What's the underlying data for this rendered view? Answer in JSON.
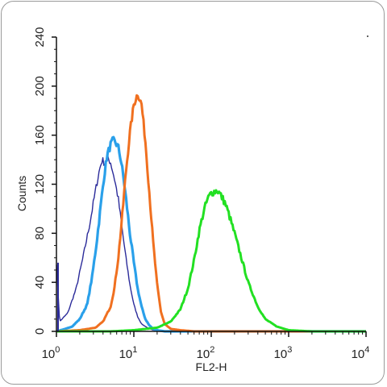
{
  "chart_data": {
    "type": "line",
    "xlabel": "FL2-H",
    "ylabel": "Counts",
    "x_scale": "log",
    "xlim": [
      1,
      10000
    ],
    "ylim": [
      0,
      240
    ],
    "grid": false,
    "x_ticks": [
      {
        "base": "10",
        "exp": "0",
        "value": 1
      },
      {
        "base": "10",
        "exp": "1",
        "value": 10
      },
      {
        "base": "10",
        "exp": "2",
        "value": 100
      },
      {
        "base": "10",
        "exp": "3",
        "value": 1000
      },
      {
        "base": "10",
        "exp": "4",
        "value": 10000
      }
    ],
    "y_ticks": [
      "0",
      "40",
      "80",
      "120",
      "160",
      "200",
      "240"
    ],
    "series": [
      {
        "color": "#2b2b9a",
        "x": [
          1.0,
          1.1,
          1.4,
          1.8,
          2.2,
          2.7,
          3.2,
          3.6,
          3.9,
          4.2,
          4.5,
          5.0,
          5.6,
          6.3,
          7.0,
          7.9,
          8.9,
          10.0,
          11.2,
          12.6,
          15,
          18,
          22,
          30,
          100,
          10000
        ],
        "y": [
          56,
          8,
          15,
          35,
          60,
          88,
          115,
          132,
          140,
          137,
          142,
          138,
          125,
          108,
          85,
          60,
          38,
          22,
          12,
          6,
          3,
          1,
          0.5,
          0,
          0,
          0
        ]
      },
      {
        "color": "#2aa0ea",
        "x": [
          1.0,
          1.3,
          1.6,
          2.0,
          2.5,
          2.9,
          3.3,
          3.7,
          4.1,
          4.5,
          5.0,
          5.4,
          5.8,
          6.3,
          6.8,
          7.4,
          8.1,
          8.9,
          10.0,
          11.2,
          12.6,
          14.1,
          15.8,
          17.8,
          20,
          25,
          35,
          100,
          10000
        ],
        "y": [
          0,
          2,
          4,
          10,
          22,
          45,
          72,
          100,
          125,
          143,
          152,
          156,
          154,
          150,
          140,
          124,
          103,
          80,
          56,
          35,
          20,
          10,
          5,
          2,
          1,
          0,
          0,
          0,
          0
        ]
      },
      {
        "color": "#f07020",
        "x": [
          1.0,
          2.0,
          3.2,
          4.0,
          5.0,
          5.6,
          6.3,
          7.1,
          7.9,
          8.9,
          10.0,
          11.2,
          12.6,
          14.1,
          15.8,
          17.8,
          20.0,
          22.4,
          25,
          30,
          40,
          60,
          100,
          10000
        ],
        "y": [
          0,
          1,
          3,
          8,
          20,
          35,
          60,
          95,
          130,
          162,
          185,
          194,
          185,
          155,
          115,
          72,
          38,
          16,
          6,
          2,
          1,
          0,
          0,
          0
        ]
      },
      {
        "color": "#22e022",
        "x": [
          1.0,
          5,
          10,
          20,
          30,
          40,
          50,
          60,
          70,
          80,
          90,
          100,
          110,
          120,
          130,
          150,
          170,
          200,
          250,
          300,
          400,
          500,
          700,
          1000,
          2000,
          10000
        ],
        "y": [
          0,
          0,
          1,
          3,
          8,
          18,
          35,
          58,
          82,
          98,
          108,
          113,
          114,
          115,
          112,
          105,
          95,
          80,
          58,
          40,
          20,
          10,
          4,
          1,
          0,
          0
        ]
      }
    ]
  }
}
